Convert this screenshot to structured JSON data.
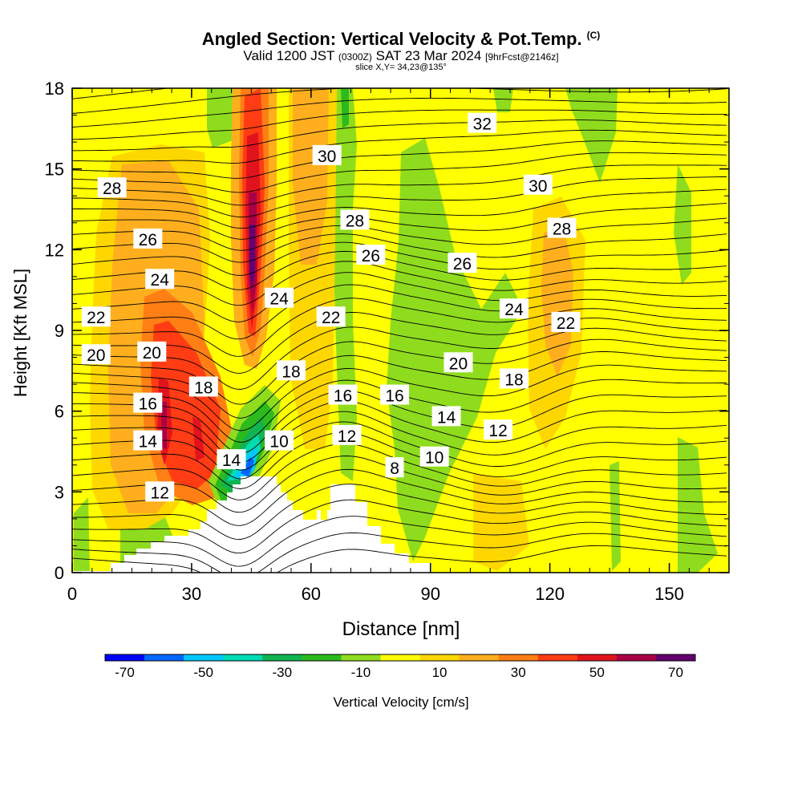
{
  "header": {
    "title": "Angled Section: Vertical Velocity & Pot.Temp.",
    "copyright": "(C)",
    "valid_prefix": "Valid 1200 JST",
    "valid_utc": "(0300Z)",
    "valid_date": "SAT 23 Mar 2024",
    "forecast_info": "[9hrFcst@2146z]",
    "slice_info": "slice X,Y= 34,23@135°"
  },
  "chart_data": {
    "type": "heatmap",
    "xlabel": "Distance [nm]",
    "ylabel": "Height [Kft MSL]",
    "xlim": [
      0,
      165
    ],
    "ylim": [
      0,
      18
    ],
    "x_ticks": [
      "0",
      "30",
      "60",
      "90",
      "120",
      "150"
    ],
    "x_tick_values": [
      0,
      30,
      60,
      90,
      120,
      150
    ],
    "y_ticks": [
      "0",
      "3",
      "6",
      "9",
      "12",
      "15",
      "18"
    ],
    "y_tick_values": [
      0,
      3,
      6,
      9,
      12,
      15,
      18
    ],
    "colorbar": {
      "label": "Vertical Velocity [cm/s]",
      "tick_labels": [
        "-70",
        "-50",
        "-30",
        "-10",
        "10",
        "30",
        "50",
        "70"
      ],
      "tick_values": [
        -70,
        -50,
        -30,
        -10,
        10,
        30,
        50,
        70
      ],
      "range": [
        -75,
        75
      ],
      "colors": [
        "#0000ff",
        "#0066ff",
        "#00c8ff",
        "#00dcb4",
        "#10b450",
        "#2dba1d",
        "#8fdc1e",
        "#ffff00",
        "#ffd700",
        "#ffaf1e",
        "#ff7f14",
        "#ff3c14",
        "#e1141e",
        "#aa0046",
        "#64006e"
      ]
    },
    "contour_labels": [
      {
        "text": "32",
        "x": 103,
        "y": 16.7
      },
      {
        "text": "30",
        "x": 64,
        "y": 15.5
      },
      {
        "text": "30",
        "x": 117,
        "y": 14.4
      },
      {
        "text": "28",
        "x": 10,
        "y": 14.3
      },
      {
        "text": "28",
        "x": 71,
        "y": 13.1
      },
      {
        "text": "28",
        "x": 123,
        "y": 12.8
      },
      {
        "text": "26",
        "x": 19,
        "y": 12.4
      },
      {
        "text": "26",
        "x": 75,
        "y": 11.8
      },
      {
        "text": "26",
        "x": 98,
        "y": 11.5
      },
      {
        "text": "24",
        "x": 22,
        "y": 10.9
      },
      {
        "text": "24",
        "x": 52,
        "y": 10.2
      },
      {
        "text": "24",
        "x": 111,
        "y": 9.8
      },
      {
        "text": "22",
        "x": 6,
        "y": 9.5
      },
      {
        "text": "22",
        "x": 65,
        "y": 9.5
      },
      {
        "text": "22",
        "x": 124,
        "y": 9.3
      },
      {
        "text": "20",
        "x": 6,
        "y": 8.1
      },
      {
        "text": "20",
        "x": 20,
        "y": 8.2
      },
      {
        "text": "20",
        "x": 97,
        "y": 7.8
      },
      {
        "text": "18",
        "x": 55,
        "y": 7.5
      },
      {
        "text": "18",
        "x": 33,
        "y": 6.9
      },
      {
        "text": "18",
        "x": 111,
        "y": 7.2
      },
      {
        "text": "16",
        "x": 19,
        "y": 6.3
      },
      {
        "text": "16",
        "x": 68,
        "y": 6.6
      },
      {
        "text": "16",
        "x": 81,
        "y": 6.6
      },
      {
        "text": "14",
        "x": 19,
        "y": 4.9
      },
      {
        "text": "14",
        "x": 94,
        "y": 5.8
      },
      {
        "text": "14",
        "x": 40,
        "y": 4.2
      },
      {
        "text": "12",
        "x": 69,
        "y": 5.1
      },
      {
        "text": "12",
        "x": 107,
        "y": 5.3
      },
      {
        "text": "12",
        "x": 22,
        "y": 3.0
      },
      {
        "text": "10",
        "x": 52,
        "y": 4.9
      },
      {
        "text": "10",
        "x": 91,
        "y": 4.3
      },
      {
        "text": "8",
        "x": 81,
        "y": 3.9
      }
    ]
  }
}
